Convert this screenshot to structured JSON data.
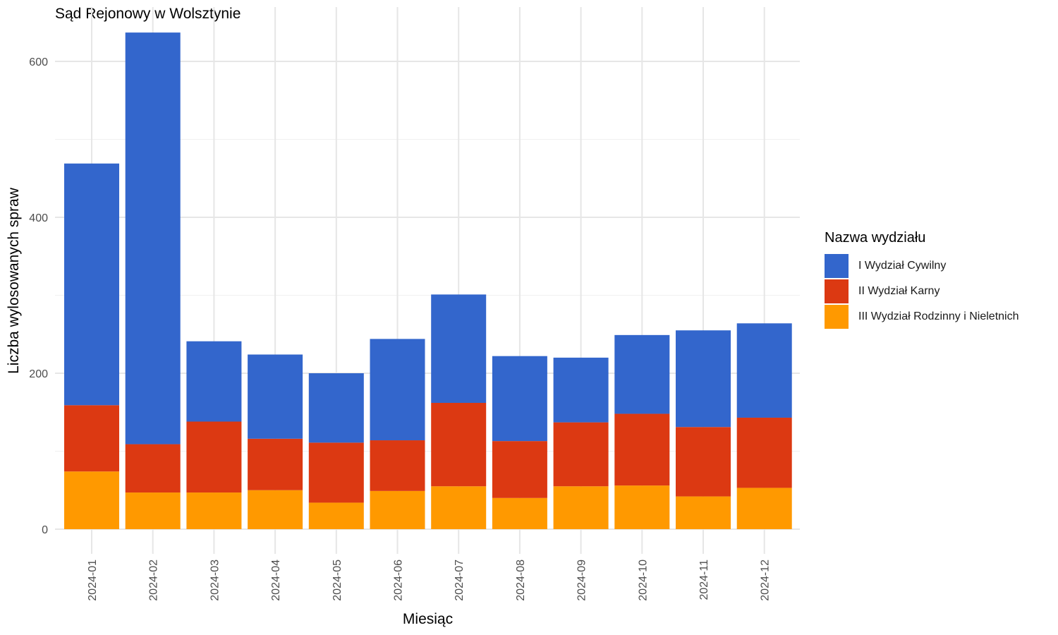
{
  "chart_data": {
    "type": "bar",
    "stacked": true,
    "title": "Sąd Rejonowy w Wolsztynie",
    "xlabel": "Miesiąc",
    "ylabel": "Liczba wylosowanych spraw",
    "ylim": [
      0,
      660
    ],
    "yticks": [
      0,
      200,
      400,
      600
    ],
    "grid": true,
    "legend_position": "right",
    "legend_title": "Nazwa wydziału",
    "categories": [
      "2024-01",
      "2024-02",
      "2024-03",
      "2024-04",
      "2024-05",
      "2024-06",
      "2024-07",
      "2024-08",
      "2024-09",
      "2024-10",
      "2024-11",
      "2024-12"
    ],
    "series": [
      {
        "name": "III Wydział Rodzinny i Nieletnich",
        "color": "#FF9900",
        "values": [
          74,
          47,
          47,
          50,
          34,
          49,
          55,
          40,
          55,
          56,
          42,
          53
        ]
      },
      {
        "name": "II Wydział Karny",
        "color": "#DC3912",
        "values": [
          85,
          62,
          91,
          66,
          77,
          65,
          107,
          73,
          82,
          92,
          89,
          90
        ]
      },
      {
        "name": "I Wydział Cywilny",
        "color": "#3366CC",
        "values": [
          310,
          528,
          103,
          108,
          89,
          130,
          139,
          109,
          83,
          101,
          124,
          121
        ]
      }
    ]
  }
}
